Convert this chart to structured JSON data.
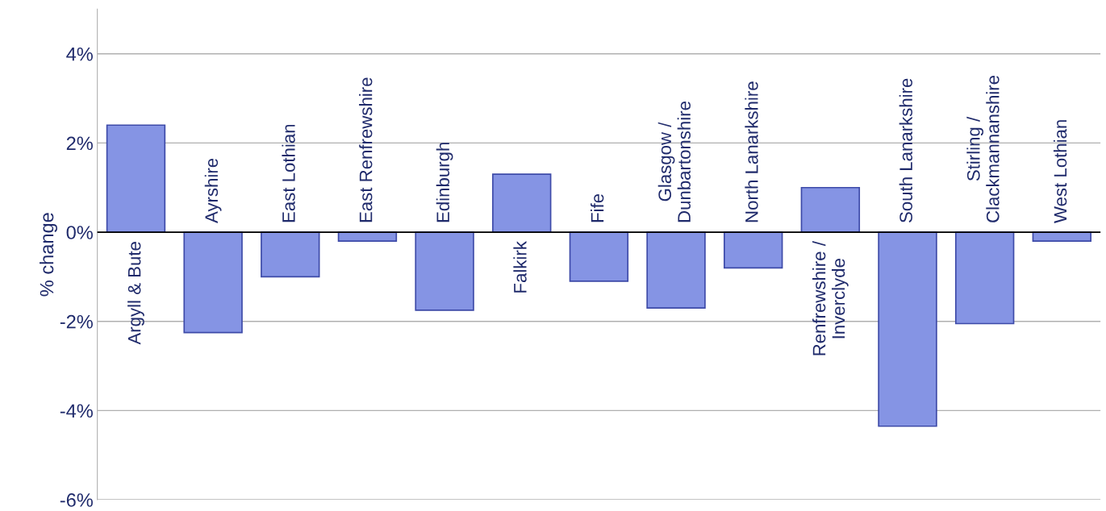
{
  "chart_data": {
    "type": "bar",
    "ylabel": "% change",
    "categories": [
      "Argyll & Bute",
      "Ayrshire",
      "East Lothian",
      "East Renfrewshire",
      "Edinburgh",
      "Falkirk",
      "Fife",
      "Glasgow /\nDunbartonshire",
      "North Lanarkshire",
      "Renfrewshire /\nInverclyde",
      "South Lanarkshire",
      "Stirling /\nClackmannanshire",
      "West Lothian"
    ],
    "values": [
      2.4,
      -2.25,
      -1.0,
      -0.2,
      -1.75,
      1.3,
      -1.1,
      -1.7,
      -0.8,
      1.0,
      -4.35,
      -2.05,
      -0.2
    ],
    "color": "#8594e4",
    "ylim": [
      -6,
      5
    ],
    "yticks": [
      {
        "value": -6,
        "label": "-6%"
      },
      {
        "value": -4,
        "label": "-4%"
      },
      {
        "value": -2,
        "label": "-2%"
      },
      {
        "value": 0,
        "label": "0%"
      },
      {
        "value": 2,
        "label": "2%"
      },
      {
        "value": 4,
        "label": "4%"
      }
    ],
    "grid": "y",
    "tick_labels": "y"
  }
}
